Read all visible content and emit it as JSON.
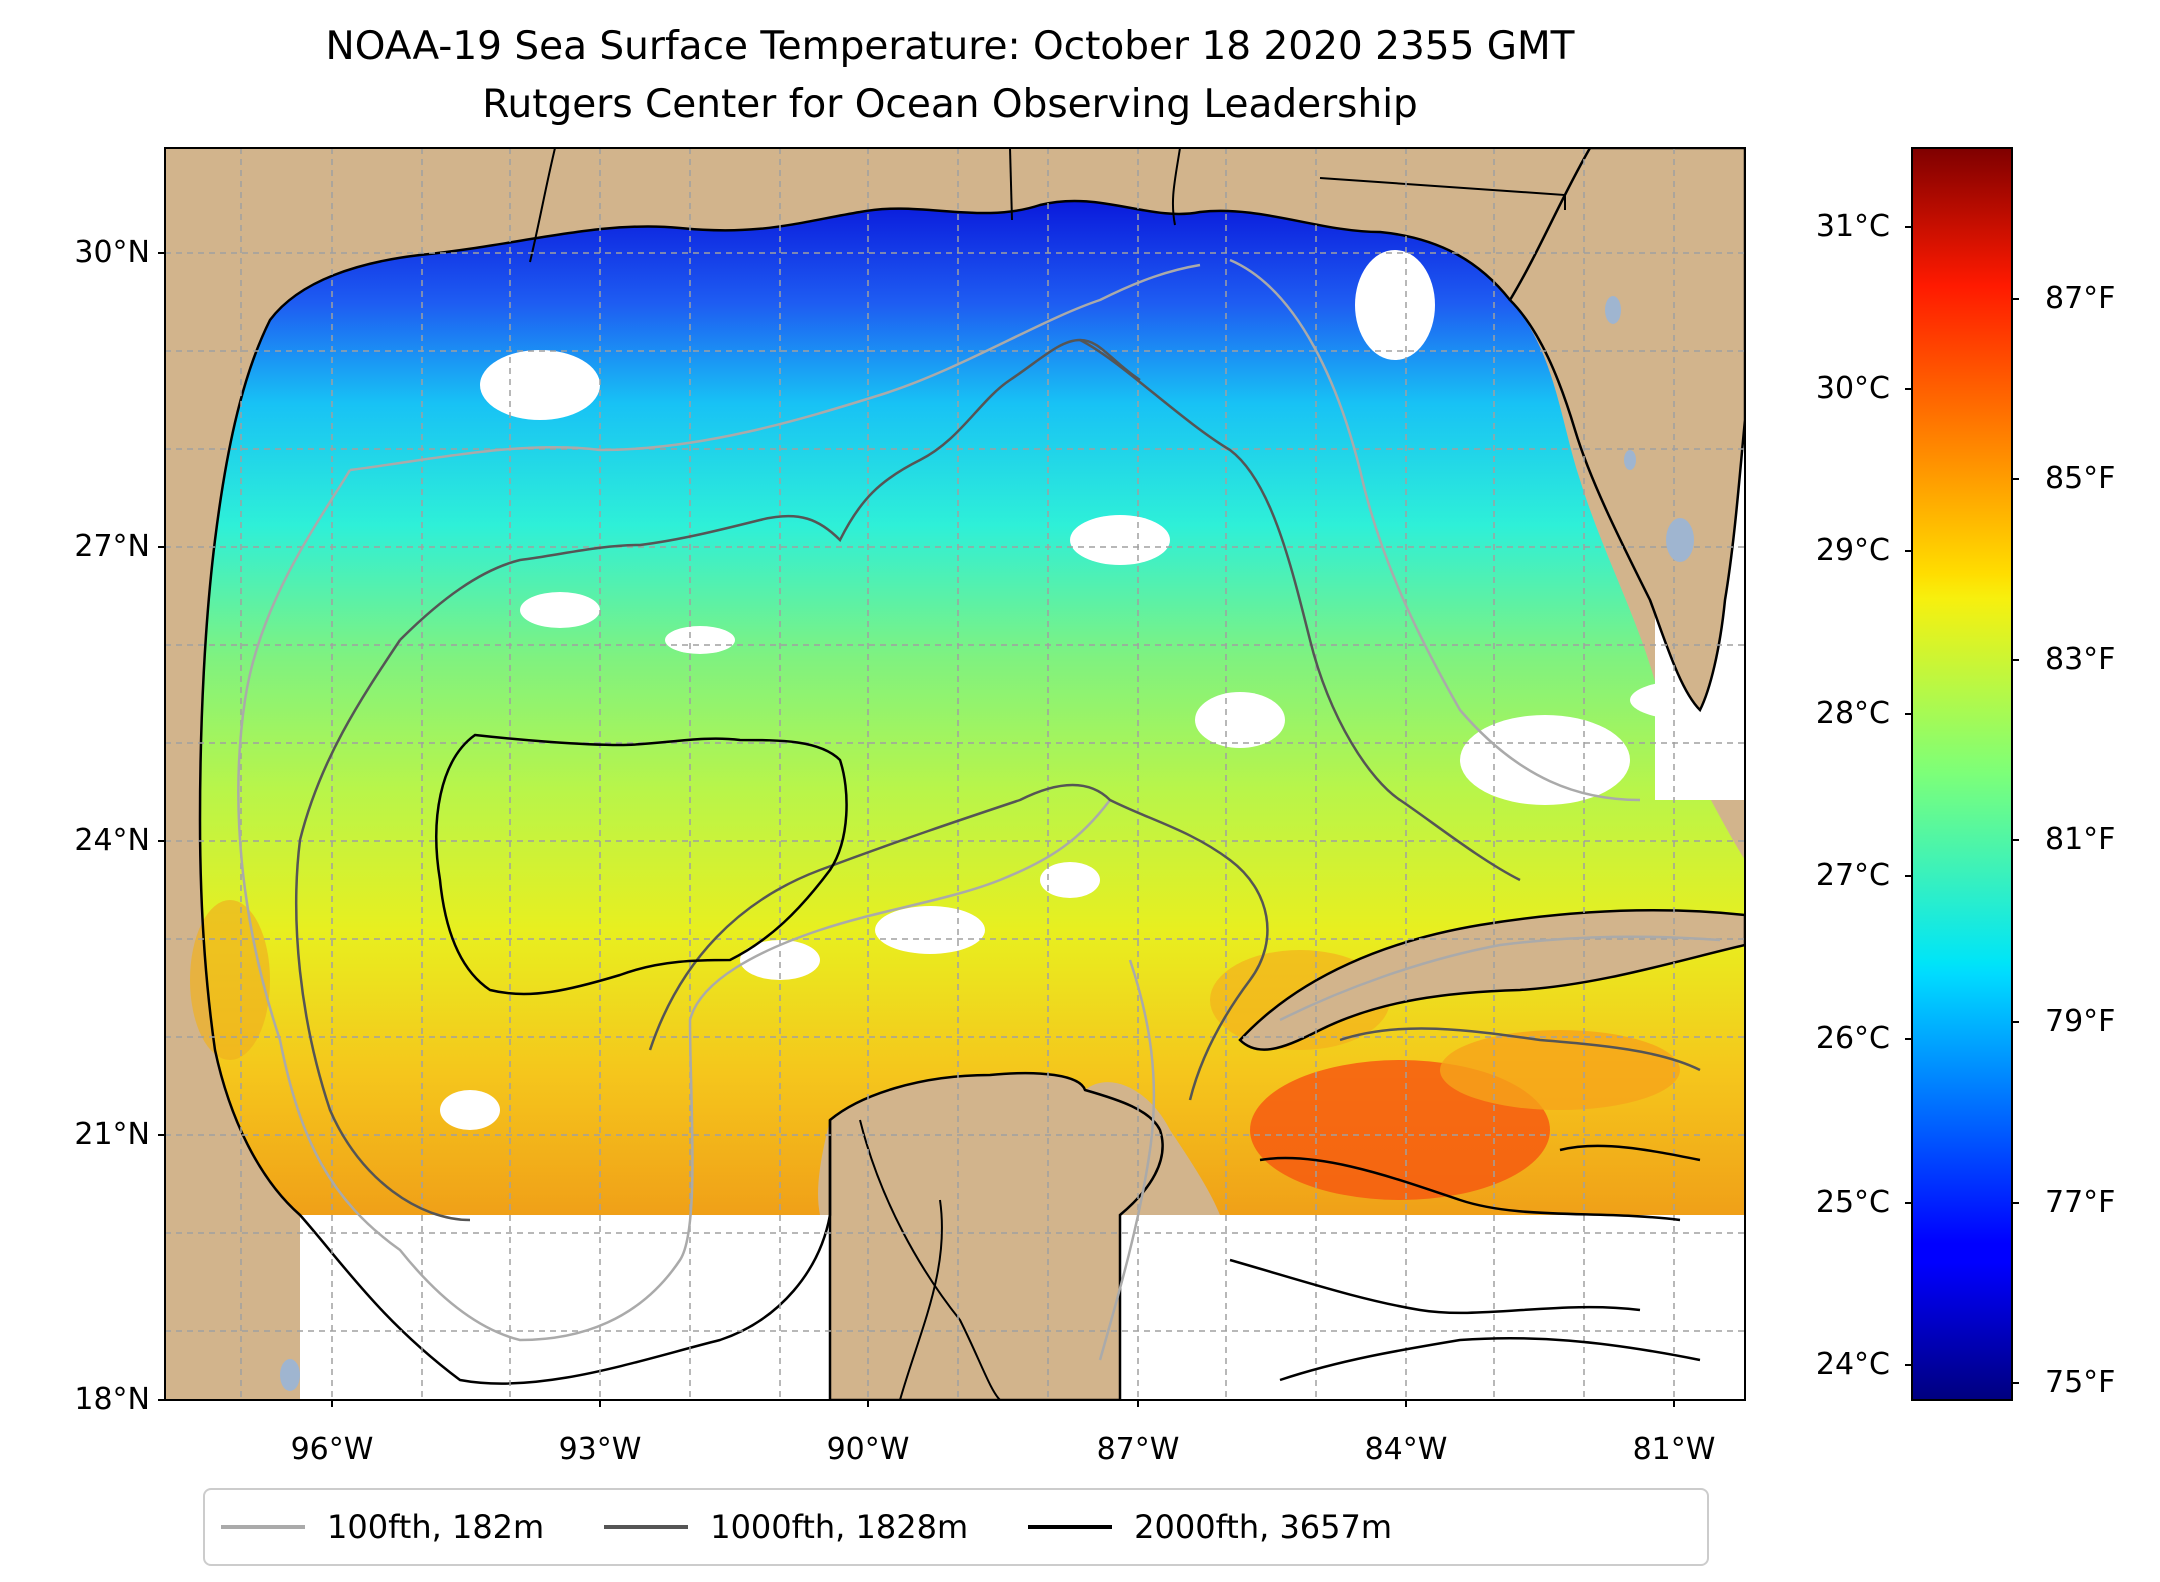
{
  "title": {
    "line1": "NOAA-19 Sea Surface Temperature: October 18 2020 2355 GMT",
    "line2": "Rutgers Center for Ocean Observing Leadership"
  },
  "map": {
    "lat_range": [
      18,
      31.1
    ],
    "lon_range": [
      -98.2,
      -80.6
    ],
    "land_color": "#d2b48c",
    "no_data_color": "#ffffff",
    "lat_labels": [
      {
        "value": 30,
        "text": "30°N"
      },
      {
        "value": 27,
        "text": "27°N"
      },
      {
        "value": 24,
        "text": "24°N"
      },
      {
        "value": 21,
        "text": "21°N"
      },
      {
        "value": 18,
        "text": "18°N"
      }
    ],
    "lon_labels": [
      {
        "value": -96,
        "text": "96°W"
      },
      {
        "value": -93,
        "text": "93°W"
      },
      {
        "value": -90,
        "text": "90°W"
      },
      {
        "value": -87,
        "text": "87°W"
      },
      {
        "value": -84,
        "text": "84°W"
      },
      {
        "value": -81,
        "text": "81°W"
      }
    ]
  },
  "colorbar": {
    "colormap": "jet",
    "min_c": 23.8,
    "max_c": 31.6,
    "celsius_ticks": [
      {
        "value": 24,
        "text": "24°C"
      },
      {
        "value": 25,
        "text": "25°C"
      },
      {
        "value": 26,
        "text": "26°C"
      },
      {
        "value": 27,
        "text": "27°C"
      },
      {
        "value": 28,
        "text": "28°C"
      },
      {
        "value": 29,
        "text": "29°C"
      },
      {
        "value": 30,
        "text": "30°C"
      },
      {
        "value": 31,
        "text": "31°C"
      }
    ],
    "fahrenheit_ticks": [
      {
        "value": 75,
        "text": "75°F"
      },
      {
        "value": 77,
        "text": "77°F"
      },
      {
        "value": 79,
        "text": "79°F"
      },
      {
        "value": 81,
        "text": "81°F"
      },
      {
        "value": 83,
        "text": "83°F"
      },
      {
        "value": 85,
        "text": "85°F"
      },
      {
        "value": 87,
        "text": "87°F"
      }
    ]
  },
  "legend": {
    "items": [
      {
        "label": "100fth, 182m",
        "color": "#aaaaaa"
      },
      {
        "label": "1000fth, 1828m",
        "color": "#555555"
      },
      {
        "label": "2000fth, 3657m",
        "color": "#000000"
      }
    ]
  }
}
